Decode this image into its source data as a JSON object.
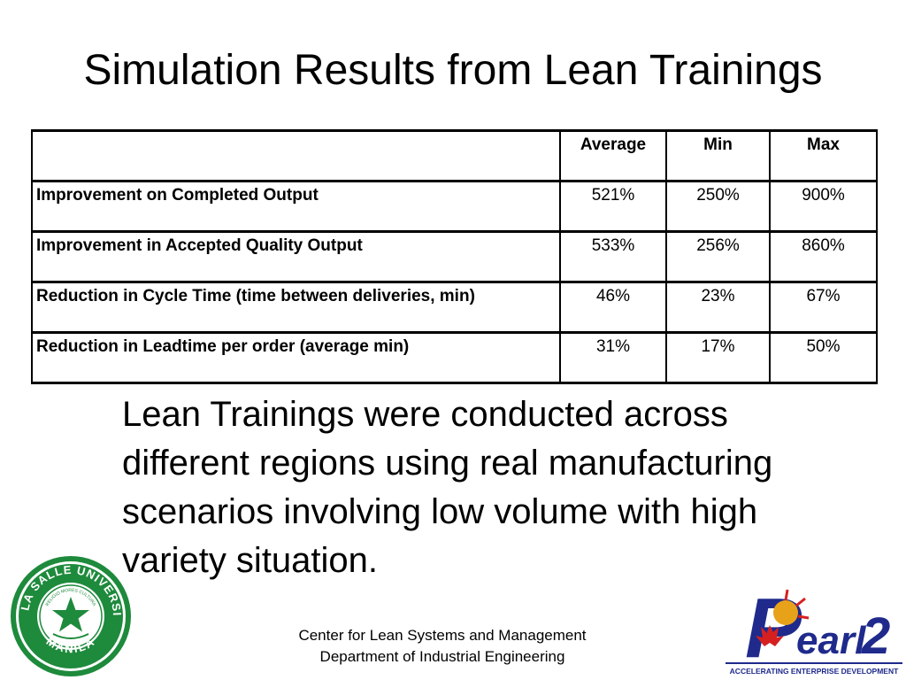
{
  "slide": {
    "title": "Simulation Results from Lean Trainings"
  },
  "table": {
    "headers": [
      "",
      "Average",
      "Min",
      "Max"
    ],
    "rows": [
      {
        "label": "Improvement on Completed Output",
        "average": "521%",
        "min": "250%",
        "max": "900%"
      },
      {
        "label": "Improvement in Accepted Quality Output",
        "average": "533%",
        "min": "256%",
        "max": "860%"
      },
      {
        "label": "Reduction in Cycle Time (time between deliveries, min)",
        "average": "46%",
        "min": "23%",
        "max": "67%"
      },
      {
        "label": "Reduction in Leadtime per order (average min)",
        "average": "31%",
        "min": "17%",
        "max": "50%"
      }
    ]
  },
  "body": {
    "text": "Lean Trainings were conducted across different regions using real manufacturing scenarios involving low volume with high variety situation."
  },
  "footer": {
    "line1": "Center for Lean Systems and Management",
    "line2": "Department of Industrial Engineering"
  },
  "logos": {
    "dlsu": {
      "top_text": "DE LA SALLE UNIVERSITY",
      "bottom_text": "MANILA",
      "motto": "RELIGIO MORES CULTURA",
      "color": "#1e8a3c"
    },
    "pearl": {
      "wordmark_prefix": "earl",
      "wordmark_number": "2",
      "initial": "P",
      "tagline": "ACCELERATING ENTERPRISE DEVELOPMENT",
      "color": "#1f2a8c",
      "accent": "#e8a21a",
      "leaf_color": "#d62020"
    }
  }
}
